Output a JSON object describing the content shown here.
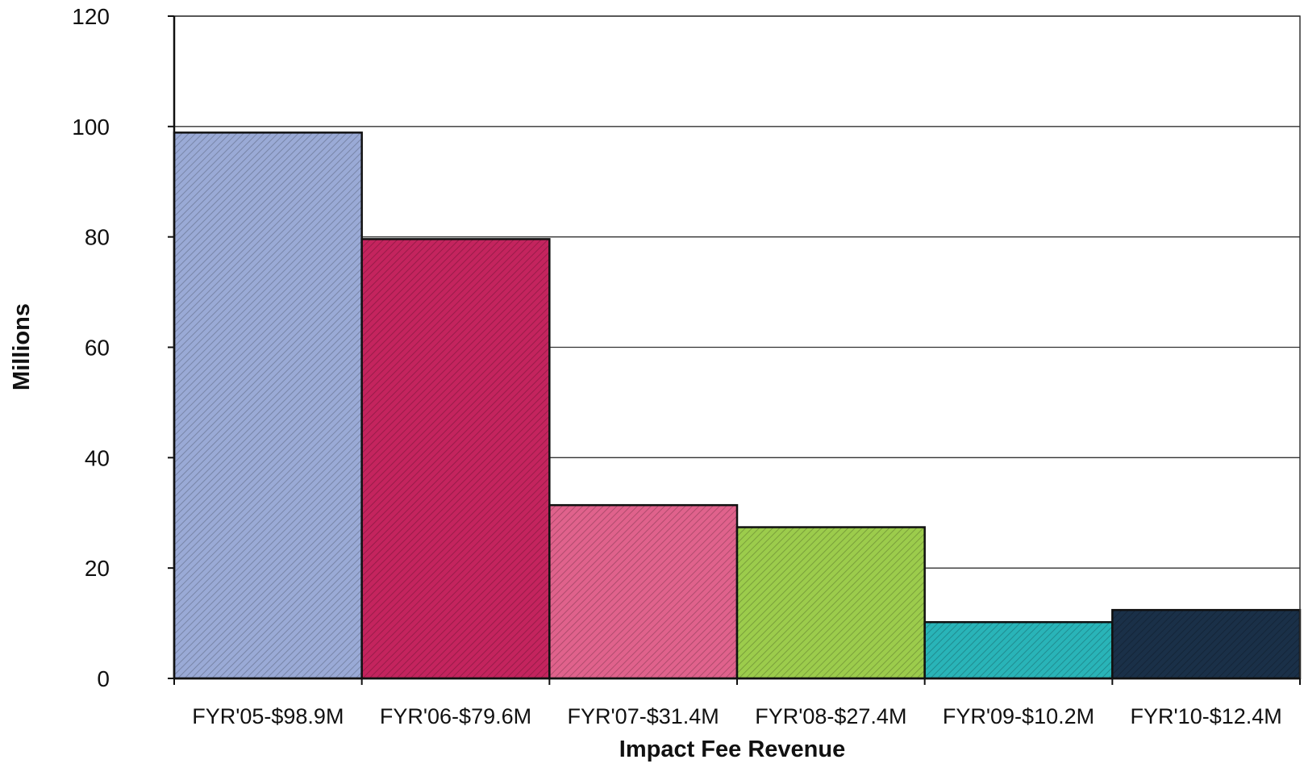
{
  "chart_data": {
    "type": "bar",
    "title": "",
    "xlabel": "Impact Fee Revenue",
    "ylabel": "Millions",
    "ylim": [
      0,
      120
    ],
    "yticks": [
      0,
      20,
      40,
      60,
      80,
      100,
      120
    ],
    "grid": true,
    "legend": "none",
    "categories": [
      "FYR'05-$98.9M",
      "FYR'06-$79.6M",
      "FYR'07-$31.4M",
      "FYR'08-$27.4M",
      "FYR'09-$10.2M",
      "FYR'10-$12.4M"
    ],
    "values": [
      98.9,
      79.6,
      31.4,
      27.4,
      10.2,
      12.4
    ],
    "colors": [
      "#9aaad6",
      "#c4245e",
      "#e0628c",
      "#9ccc4c",
      "#29b4b8",
      "#1a3048"
    ]
  }
}
